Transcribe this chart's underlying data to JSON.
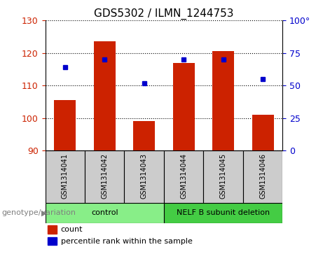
{
  "title": "GDS5302 / ILMN_1244753",
  "samples": [
    "GSM1314041",
    "GSM1314042",
    "GSM1314043",
    "GSM1314044",
    "GSM1314045",
    "GSM1314046"
  ],
  "counts": [
    105.5,
    123.5,
    99.0,
    117.0,
    120.5,
    101.0
  ],
  "percentiles": [
    64,
    70,
    52,
    70,
    70,
    55
  ],
  "ylim_left": [
    90,
    130
  ],
  "ylim_right": [
    0,
    100
  ],
  "yticks_left": [
    90,
    100,
    110,
    120,
    130
  ],
  "yticks_right": [
    0,
    25,
    50,
    75,
    100
  ],
  "yticklabels_right": [
    "0",
    "25",
    "50",
    "75",
    "100°"
  ],
  "bar_color": "#cc2200",
  "dot_color": "#0000cc",
  "bar_bottom": 90,
  "groups": [
    {
      "label": "control",
      "indices": [
        0,
        1,
        2
      ],
      "color": "#88ee88"
    },
    {
      "label": "NELF B subunit deletion",
      "indices": [
        3,
        4,
        5
      ],
      "color": "#44cc44"
    }
  ],
  "group_label": "genotype/variation",
  "legend_count": "count",
  "legend_percentile": "percentile rank within the sample",
  "sample_area_color": "#cccccc",
  "plot_bg": "#ffffff",
  "title_fontsize": 11,
  "tick_fontsize": 9,
  "sample_fontsize": 7,
  "group_fontsize": 8,
  "legend_fontsize": 8
}
